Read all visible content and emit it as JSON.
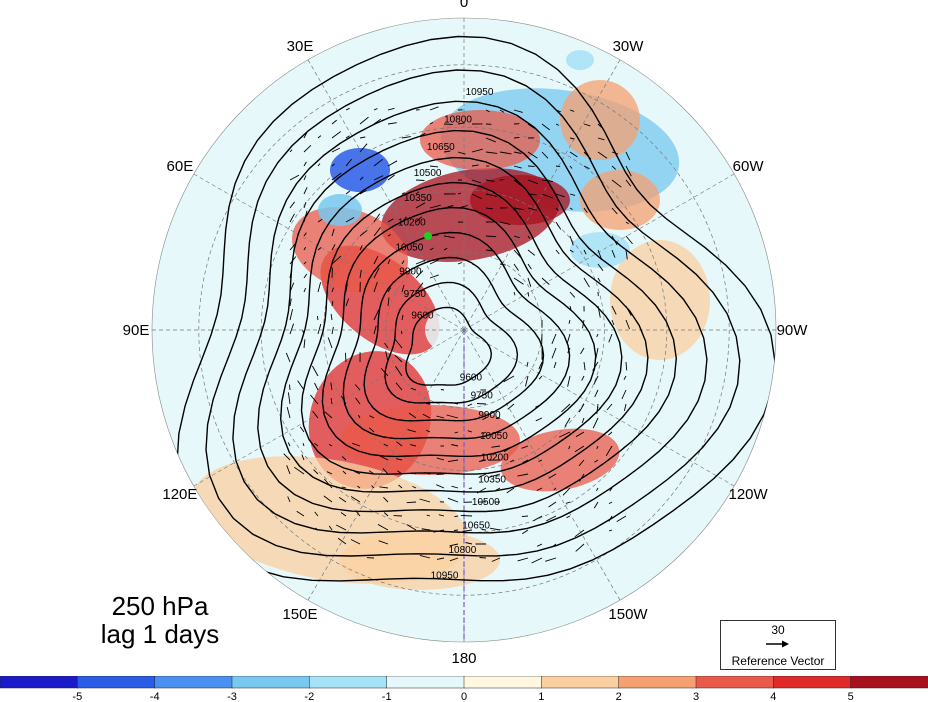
{
  "map": {
    "projection": "north-polar-stereographic",
    "longitude_labels": [
      {
        "text": "0",
        "lon": 0
      },
      {
        "text": "30W",
        "lon": -30
      },
      {
        "text": "60W",
        "lon": -60
      },
      {
        "text": "90W",
        "lon": -90
      },
      {
        "text": "120W",
        "lon": -120
      },
      {
        "text": "150W",
        "lon": -150
      },
      {
        "text": "180",
        "lon": 180
      },
      {
        "text": "150E",
        "lon": 150
      },
      {
        "text": "120E",
        "lon": 120
      },
      {
        "text": "90E",
        "lon": 90
      },
      {
        "text": "60E",
        "lon": 60
      },
      {
        "text": "30E",
        "lon": 30
      }
    ],
    "geopotential_contour_labels": [
      "9600",
      "9750",
      "9900",
      "10050",
      "10200",
      "10350",
      "10500",
      "10650",
      "10800",
      "10950"
    ],
    "marker_color": "#22cc22"
  },
  "annotation": {
    "level": "250 hPa",
    "lag": "lag 1 days"
  },
  "reference_vector": {
    "value": "30",
    "caption": "Reference Vector"
  },
  "colorbar": {
    "colors": [
      "#1a1ac8",
      "#2a5ce8",
      "#4a90f0",
      "#78c8f0",
      "#a6e2f6",
      "#e6f8fa",
      "#fff7e0",
      "#fbd0a0",
      "#f5a070",
      "#ea5a4a",
      "#e02a2a",
      "#a8101e"
    ],
    "tick_labels": [
      "-5",
      "-4",
      "-3",
      "-2",
      "-1",
      "0",
      "1",
      "2",
      "3",
      "4",
      "5"
    ]
  }
}
